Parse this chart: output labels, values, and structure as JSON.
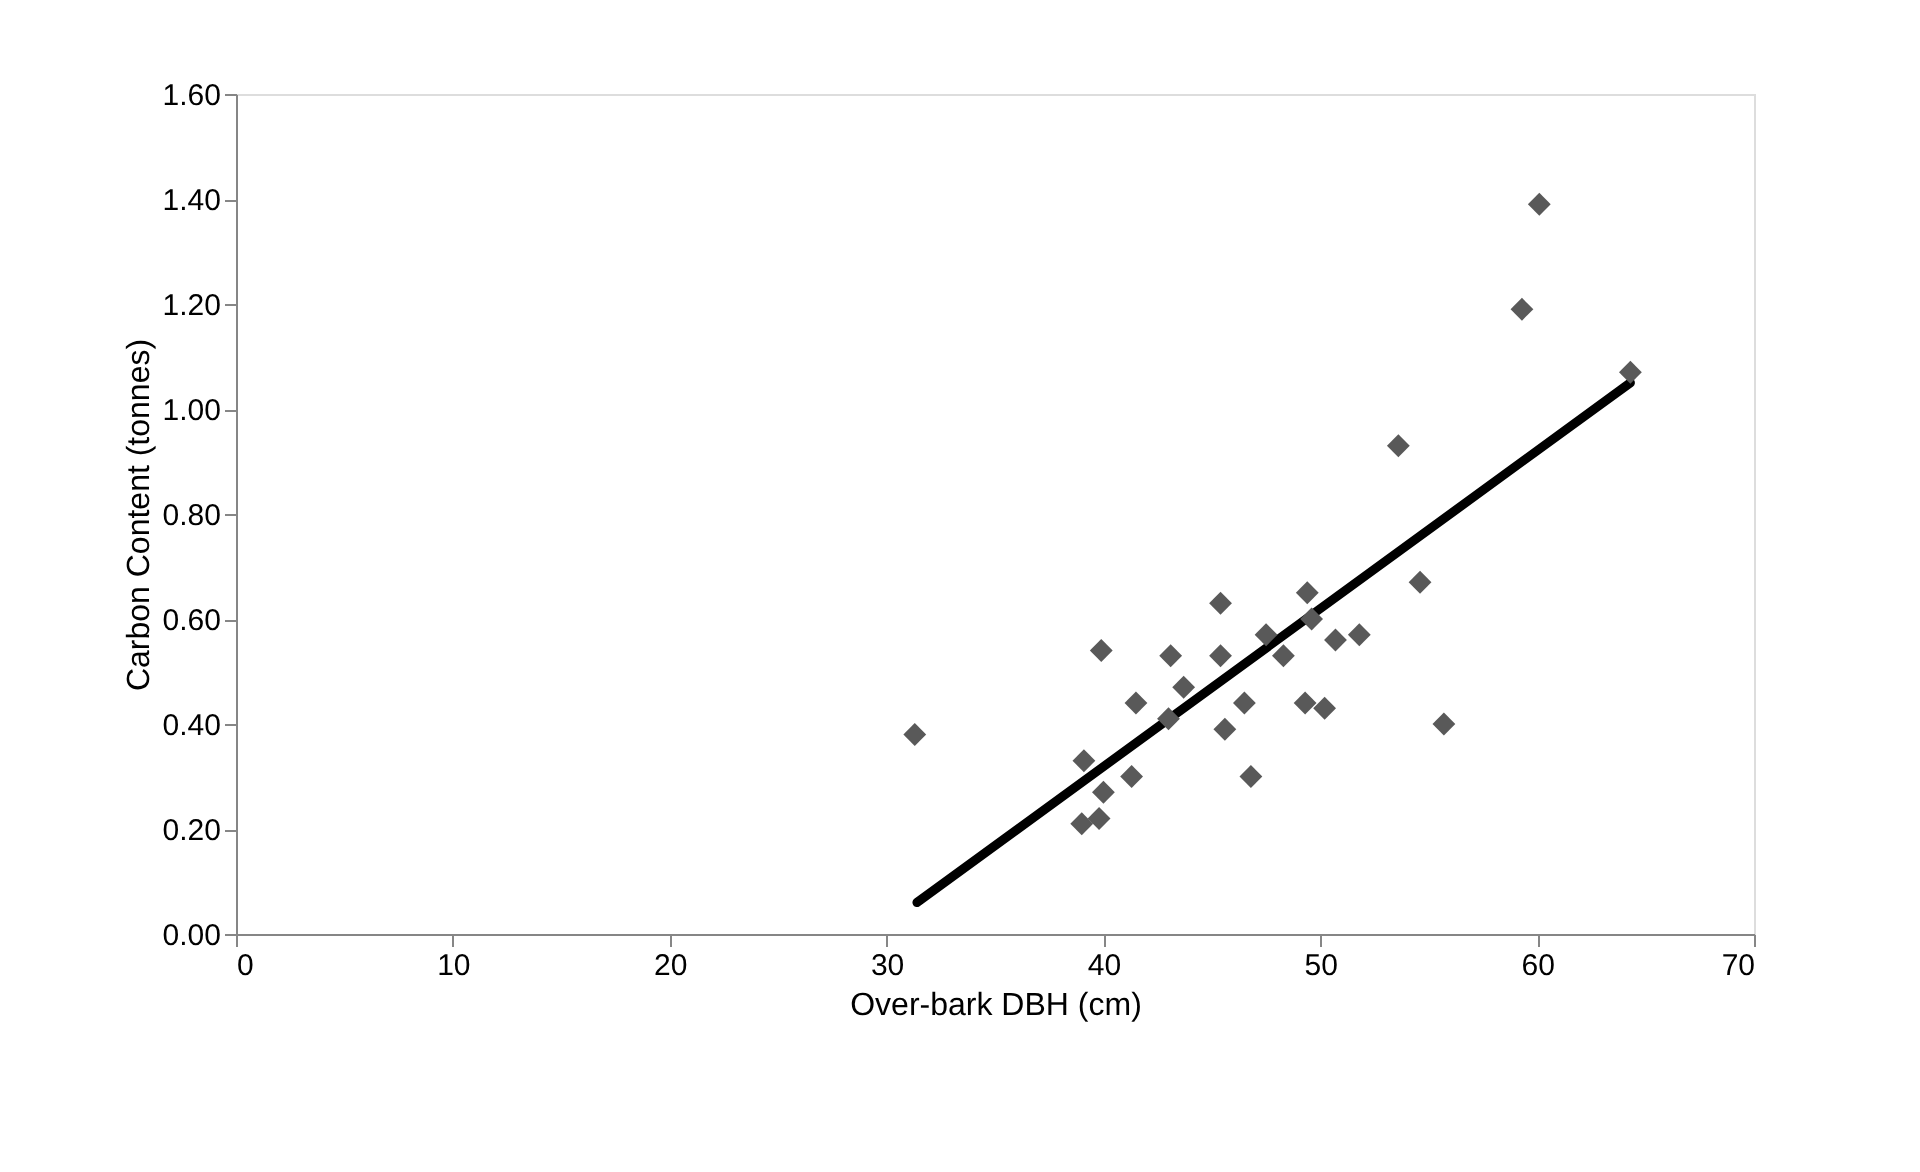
{
  "chart_data": {
    "type": "scatter",
    "xlabel": "Over-bark DBH (cm)",
    "ylabel": "Carbon Content (tonnes)",
    "xlim": [
      0,
      70
    ],
    "xticks": [
      0,
      10,
      20,
      30,
      40,
      50,
      60,
      70
    ],
    "ylim": [
      0,
      1.6
    ],
    "yticks": [
      {
        "value": 0,
        "label": "0.00"
      },
      {
        "value": 0.2,
        "label": "0.20"
      },
      {
        "value": 0.4,
        "label": "0.40"
      },
      {
        "value": 0.6,
        "label": "0.60"
      },
      {
        "value": 0.8,
        "label": "0.80"
      },
      {
        "value": 1.0,
        "label": "1.00"
      },
      {
        "value": 1.2,
        "label": "1.20"
      },
      {
        "value": 1.4,
        "label": "1.40"
      },
      {
        "value": 1.6,
        "label": "1.60"
      }
    ],
    "grid": false,
    "series": [
      {
        "marker": "diamond",
        "color": "#595959",
        "x": [
          31.3,
          60.1,
          59.3,
          64.3,
          53.6,
          54.6,
          55.7,
          49.4,
          45.4,
          39.9,
          43.1,
          45.4,
          47.5,
          49.6,
          50.7,
          51.8,
          48.3,
          43.7,
          41.5,
          46.5,
          49.3,
          50.2,
          45.6,
          43.0,
          46.8,
          39.1,
          41.3,
          40.0,
          39.8,
          39.0
        ],
        "values": [
          0.38,
          1.39,
          1.19,
          1.07,
          0.93,
          0.67,
          0.4,
          0.65,
          0.63,
          0.54,
          0.53,
          0.53,
          0.57,
          0.6,
          0.56,
          0.57,
          0.53,
          0.47,
          0.44,
          0.44,
          0.44,
          0.43,
          0.39,
          0.41,
          0.3,
          0.33,
          0.3,
          0.27,
          0.22,
          0.21
        ]
      },
      {
        "type": "line",
        "color": "#000000",
        "line_style": "solid",
        "x": [
          31.4,
          64.3
        ],
        "values": [
          0.06,
          1.05
        ]
      }
    ]
  }
}
